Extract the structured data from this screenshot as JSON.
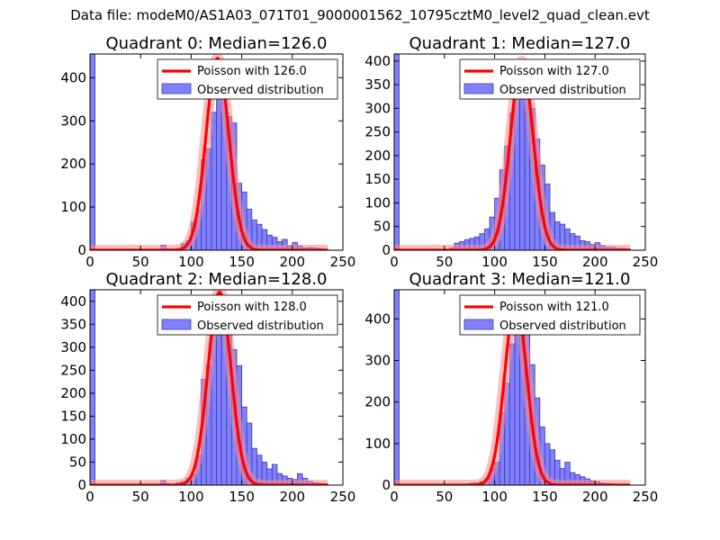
{
  "figure": {
    "title": "Data file: modeM0/AS1A03_071T01_9000001562_10795cztM0_level2_quad_clean.evt"
  },
  "colors": {
    "bar_fill": "#8080ff",
    "bar_edge": "#3c3caa",
    "poisson_line": "#ff0000",
    "poisson_glow": "#ff8a8a",
    "axes": "#000000"
  },
  "chart_data": [
    {
      "type": "bar",
      "title": "Quadrant 0: Median=126.0",
      "xlim": [
        0,
        250
      ],
      "ylim": [
        0,
        455
      ],
      "xticks": [
        0,
        50,
        100,
        150,
        200,
        250
      ],
      "yticks": [
        0,
        100,
        200,
        300,
        400
      ],
      "legend": {
        "position": "top-right",
        "line_label": "Poisson with 126.0",
        "bar_label": "Observed distribution"
      },
      "poisson_mean": 126.0,
      "poisson_peak": 445,
      "bin_width": 5,
      "bins": [
        [
          0,
          460
        ],
        [
          70,
          12
        ],
        [
          75,
          3
        ],
        [
          80,
          2
        ],
        [
          85,
          4
        ],
        [
          90,
          15
        ],
        [
          95,
          22
        ],
        [
          100,
          65
        ],
        [
          105,
          95
        ],
        [
          110,
          210
        ],
        [
          115,
          235
        ],
        [
          120,
          320
        ],
        [
          125,
          420
        ],
        [
          130,
          380
        ],
        [
          135,
          310
        ],
        [
          140,
          295
        ],
        [
          145,
          155
        ],
        [
          150,
          135
        ],
        [
          155,
          95
        ],
        [
          160,
          70
        ],
        [
          165,
          60
        ],
        [
          170,
          48
        ],
        [
          175,
          35
        ],
        [
          180,
          30
        ],
        [
          185,
          20
        ],
        [
          190,
          25
        ],
        [
          195,
          10
        ],
        [
          200,
          18
        ],
        [
          205,
          10
        ],
        [
          210,
          5
        ],
        [
          215,
          6
        ],
        [
          220,
          5
        ],
        [
          225,
          4
        ],
        [
          230,
          3
        ]
      ]
    },
    {
      "type": "bar",
      "title": "Quadrant 1: Median=127.0",
      "xlim": [
        0,
        250
      ],
      "ylim": [
        0,
        415
      ],
      "xticks": [
        0,
        50,
        100,
        150,
        200,
        250
      ],
      "yticks": [
        0,
        50,
        100,
        150,
        200,
        250,
        300,
        350,
        400
      ],
      "legend": {
        "position": "top-right",
        "line_label": "Poisson with 127.0",
        "bar_label": "Observed distribution"
      },
      "poisson_mean": 127.0,
      "poisson_peak": 400,
      "bin_width": 5,
      "bins": [
        [
          0,
          415
        ],
        [
          55,
          5
        ],
        [
          60,
          15
        ],
        [
          65,
          18
        ],
        [
          70,
          22
        ],
        [
          75,
          25
        ],
        [
          80,
          28
        ],
        [
          85,
          35
        ],
        [
          90,
          45
        ],
        [
          95,
          70
        ],
        [
          100,
          110
        ],
        [
          105,
          170
        ],
        [
          110,
          220
        ],
        [
          115,
          290
        ],
        [
          120,
          395
        ],
        [
          125,
          365
        ],
        [
          130,
          345
        ],
        [
          135,
          300
        ],
        [
          140,
          235
        ],
        [
          145,
          180
        ],
        [
          150,
          140
        ],
        [
          155,
          80
        ],
        [
          160,
          60
        ],
        [
          165,
          55
        ],
        [
          170,
          45
        ],
        [
          175,
          35
        ],
        [
          180,
          30
        ],
        [
          185,
          20
        ],
        [
          190,
          18
        ],
        [
          195,
          12
        ],
        [
          200,
          16
        ],
        [
          205,
          10
        ],
        [
          210,
          6
        ],
        [
          215,
          6
        ],
        [
          220,
          4
        ],
        [
          225,
          4
        ],
        [
          230,
          3
        ]
      ]
    },
    {
      "type": "bar",
      "title": "Quadrant 2: Median=128.0",
      "xlim": [
        0,
        250
      ],
      "ylim": [
        0,
        425
      ],
      "xticks": [
        0,
        50,
        100,
        150,
        200,
        250
      ],
      "yticks": [
        0,
        50,
        100,
        150,
        200,
        250,
        300,
        350,
        400
      ],
      "legend": {
        "position": "top-right",
        "line_label": "Poisson with 128.0",
        "bar_label": "Observed distribution"
      },
      "poisson_mean": 128.0,
      "poisson_peak": 420,
      "bin_width": 5,
      "bins": [
        [
          0,
          425
        ],
        [
          70,
          10
        ],
        [
          75,
          3
        ],
        [
          80,
          2
        ],
        [
          85,
          5
        ],
        [
          90,
          8
        ],
        [
          95,
          15
        ],
        [
          100,
          25
        ],
        [
          105,
          65
        ],
        [
          110,
          230
        ],
        [
          115,
          260
        ],
        [
          120,
          350
        ],
        [
          125,
          410
        ],
        [
          130,
          400
        ],
        [
          135,
          350
        ],
        [
          140,
          295
        ],
        [
          145,
          260
        ],
        [
          150,
          170
        ],
        [
          155,
          135
        ],
        [
          160,
          80
        ],
        [
          165,
          65
        ],
        [
          170,
          50
        ],
        [
          175,
          35
        ],
        [
          180,
          45
        ],
        [
          185,
          25
        ],
        [
          190,
          20
        ],
        [
          195,
          15
        ],
        [
          200,
          12
        ],
        [
          205,
          25
        ],
        [
          210,
          15
        ],
        [
          215,
          8
        ],
        [
          220,
          5
        ],
        [
          225,
          4
        ],
        [
          230,
          3
        ]
      ]
    },
    {
      "type": "bar",
      "title": "Quadrant 3: Median=121.0",
      "xlim": [
        0,
        250
      ],
      "ylim": [
        0,
        470
      ],
      "xticks": [
        0,
        50,
        100,
        150,
        200,
        250
      ],
      "yticks": [
        0,
        100,
        200,
        300,
        400
      ],
      "legend": {
        "position": "top-right",
        "line_label": "Poisson with 121.0",
        "bar_label": "Observed distribution"
      },
      "poisson_mean": 121.0,
      "poisson_peak": 440,
      "bin_width": 5,
      "bins": [
        [
          0,
          470
        ],
        [
          75,
          5
        ],
        [
          80,
          5
        ],
        [
          85,
          8
        ],
        [
          90,
          15
        ],
        [
          95,
          40
        ],
        [
          100,
          55
        ],
        [
          105,
          175
        ],
        [
          110,
          245
        ],
        [
          115,
          340
        ],
        [
          120,
          430
        ],
        [
          125,
          390
        ],
        [
          130,
          380
        ],
        [
          135,
          290
        ],
        [
          140,
          210
        ],
        [
          145,
          140
        ],
        [
          150,
          100
        ],
        [
          155,
          85
        ],
        [
          160,
          60
        ],
        [
          165,
          40
        ],
        [
          170,
          55
        ],
        [
          175,
          30
        ],
        [
          180,
          25
        ],
        [
          185,
          20
        ],
        [
          190,
          15
        ],
        [
          195,
          10
        ],
        [
          200,
          8
        ],
        [
          205,
          5
        ],
        [
          210,
          4
        ],
        [
          215,
          3
        ],
        [
          220,
          2
        ],
        [
          225,
          2
        ]
      ]
    }
  ]
}
